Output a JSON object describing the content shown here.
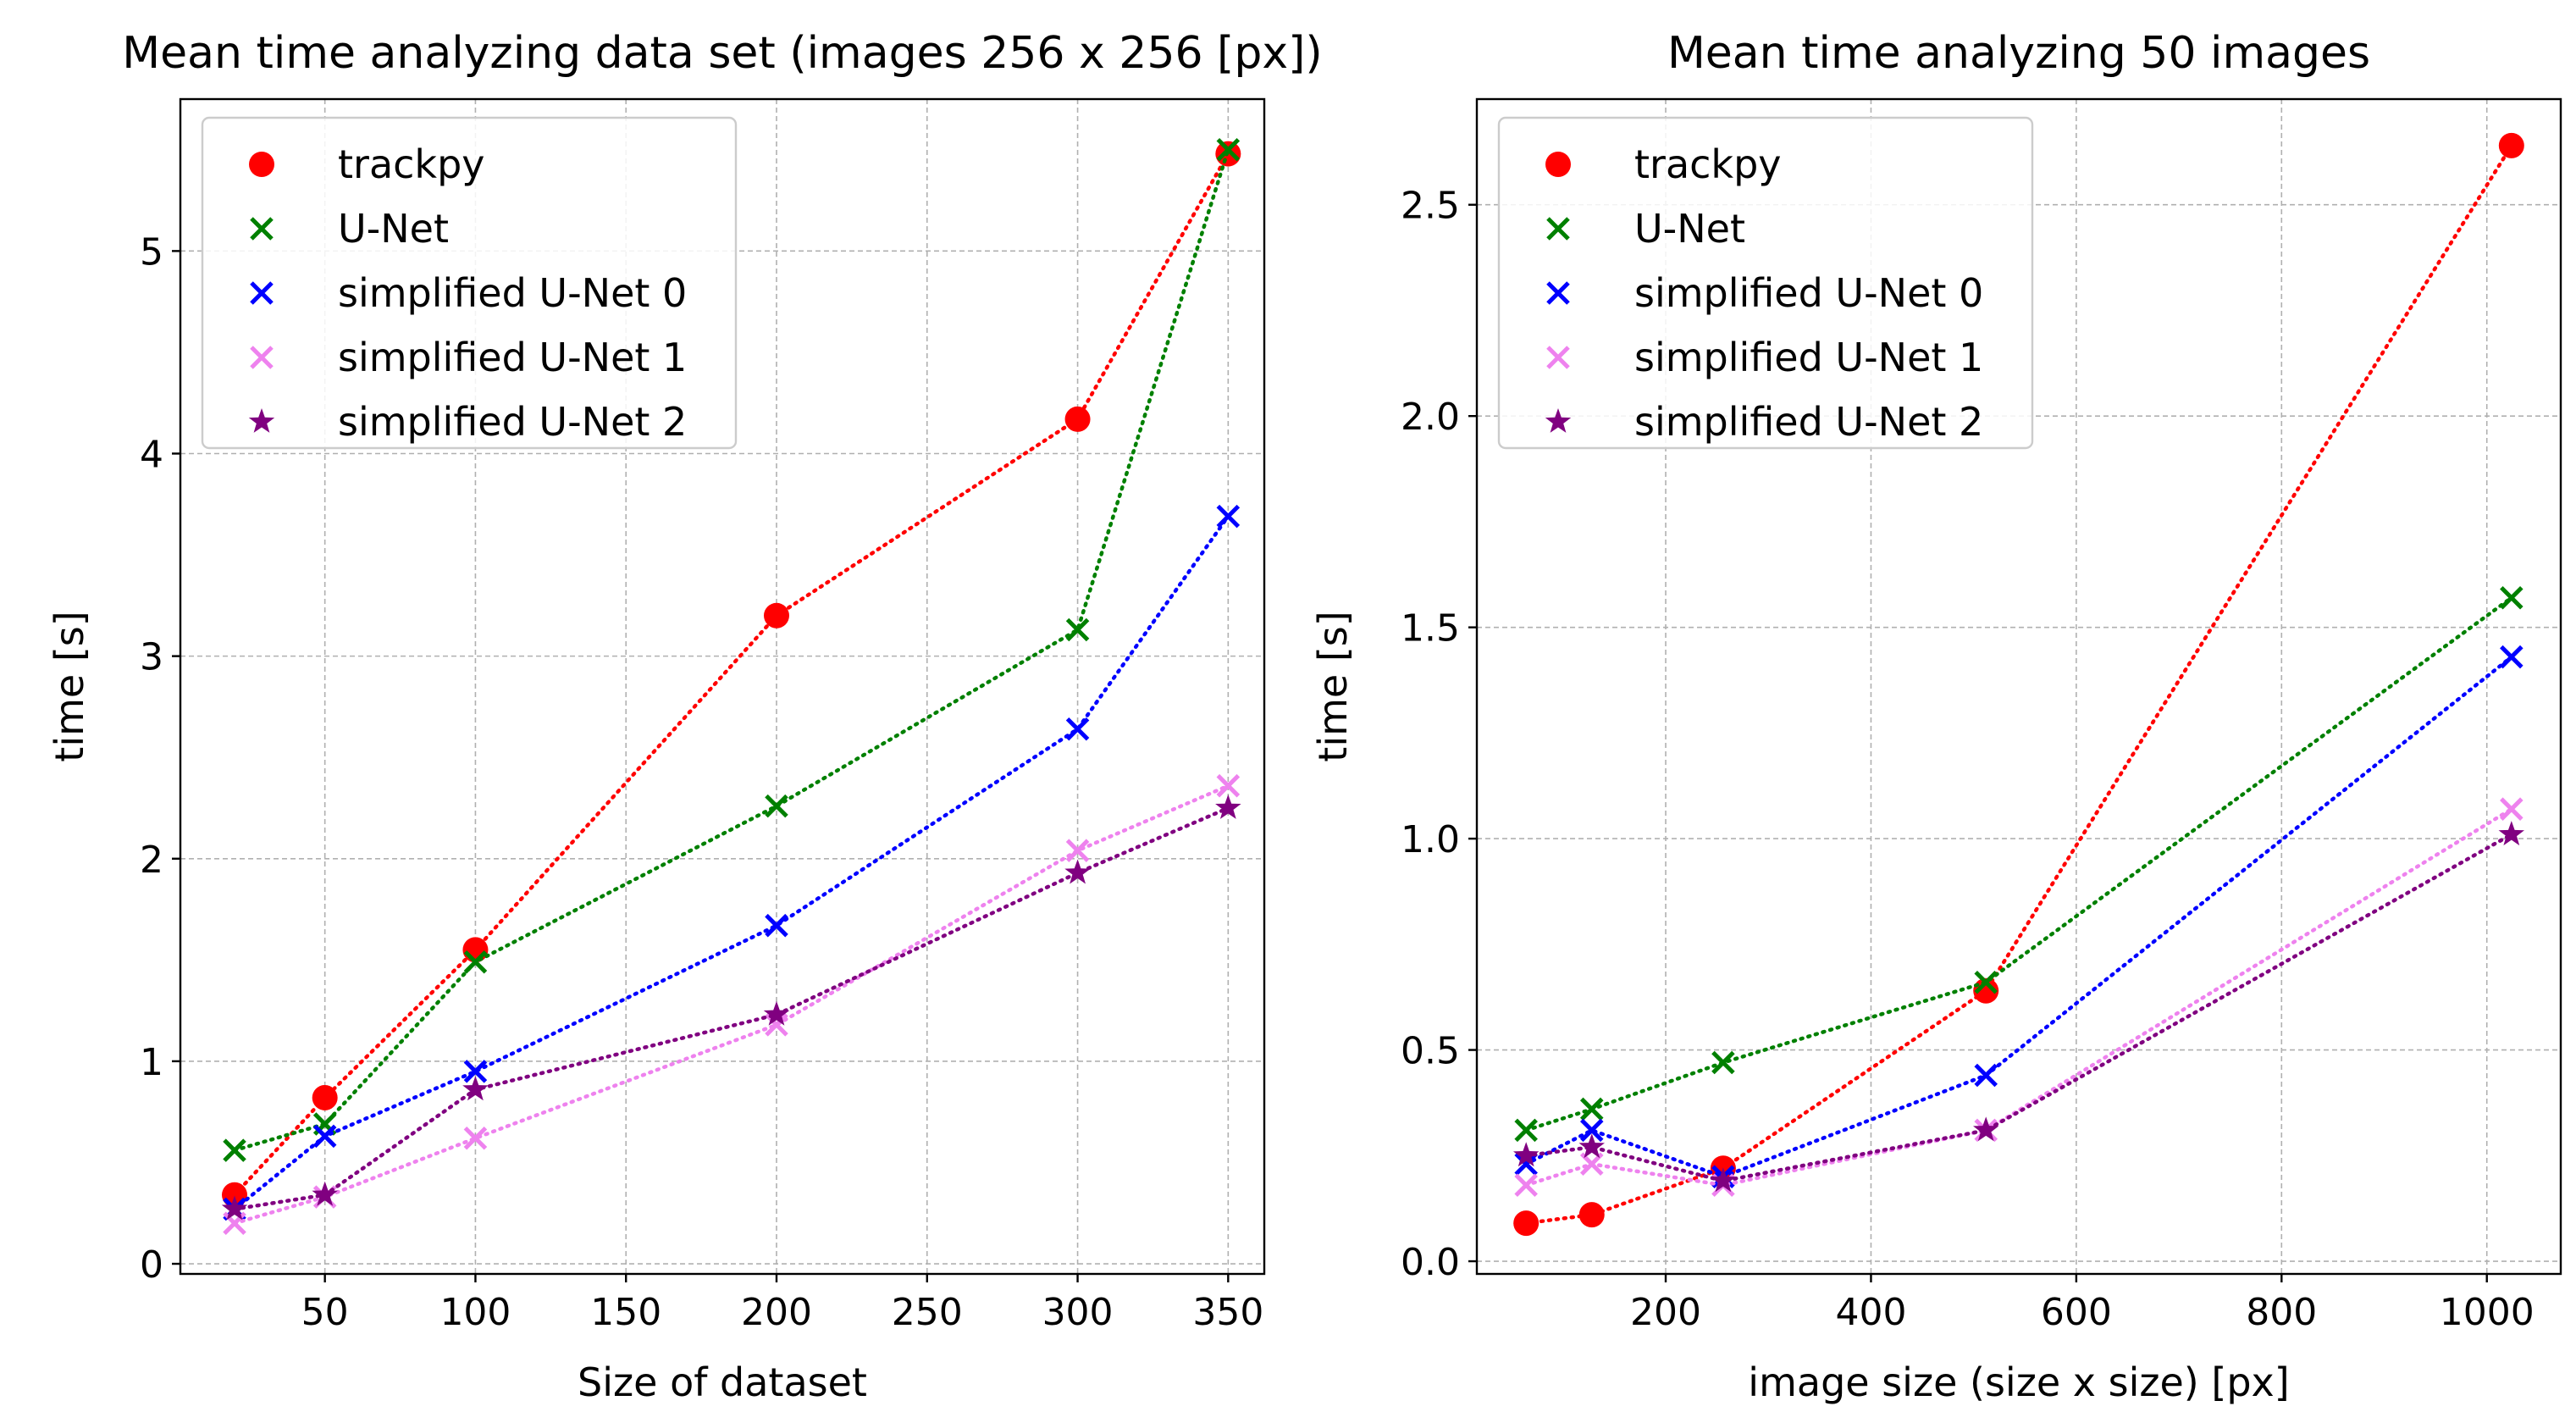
{
  "colors": {
    "trackpy": "#ff0000",
    "unet": "#008000",
    "su0": "#0000ff",
    "su1": "#ee82ee",
    "su2": "#800080",
    "grid": "#b0b0b0",
    "axes": "#000000",
    "background": "#ffffff"
  },
  "chart_data": [
    {
      "type": "line",
      "title": "Mean time analyzing data set (images 256 x 256 [px])",
      "xlabel": "Size of dataset",
      "ylabel": "time [s]",
      "xlim": [
        2,
        362
      ],
      "ylim": [
        -0.05,
        5.75
      ],
      "xticks": [
        50,
        100,
        150,
        200,
        250,
        300,
        350
      ],
      "xtick_labels": [
        "50",
        "100",
        "150",
        "200",
        "250",
        "300",
        "350"
      ],
      "yticks": [
        0,
        1,
        2,
        3,
        4,
        5
      ],
      "ytick_labels": [
        "0",
        "1",
        "2",
        "3",
        "4",
        "5"
      ],
      "grid": true,
      "legend_position": "top-left",
      "x": [
        20,
        50,
        100,
        200,
        300,
        350
      ],
      "series": [
        {
          "name": "trackpy",
          "marker": "circle",
          "color_key": "trackpy",
          "values": [
            0.34,
            0.82,
            1.55,
            3.2,
            4.17,
            5.48
          ]
        },
        {
          "name": "U-Net",
          "marker": "x",
          "color_key": "unet",
          "values": [
            0.56,
            0.69,
            1.49,
            2.26,
            3.13,
            5.5
          ]
        },
        {
          "name": "simplified U-Net 0",
          "marker": "x",
          "color_key": "su0",
          "values": [
            0.27,
            0.63,
            0.95,
            1.67,
            2.64,
            3.69
          ]
        },
        {
          "name": "simplified U-Net 1",
          "marker": "x",
          "color_key": "su1",
          "values": [
            0.2,
            0.33,
            0.62,
            1.18,
            2.04,
            2.36
          ]
        },
        {
          "name": "simplified U-Net 2",
          "marker": "star",
          "color_key": "su2",
          "values": [
            0.27,
            0.34,
            0.86,
            1.23,
            1.93,
            2.25
          ]
        }
      ]
    },
    {
      "type": "line",
      "title": "Mean time analyzing 50 images",
      "xlabel": "image size (size x size) [px]",
      "ylabel": "time [s]",
      "xlim": [
        16,
        1072
      ],
      "ylim": [
        -0.03,
        2.75
      ],
      "xticks": [
        200,
        400,
        600,
        800,
        1000
      ],
      "xtick_labels": [
        "200",
        "400",
        "600",
        "800",
        "1000"
      ],
      "yticks": [
        0.0,
        0.5,
        1.0,
        1.5,
        2.0,
        2.5
      ],
      "ytick_labels": [
        "0.0",
        "0.5",
        "1.0",
        "1.5",
        "2.0",
        "2.5"
      ],
      "grid": true,
      "legend_position": "top-left",
      "x": [
        64,
        128,
        256,
        512,
        1024
      ],
      "series": [
        {
          "name": "trackpy",
          "marker": "circle",
          "color_key": "trackpy",
          "values": [
            0.09,
            0.11,
            0.22,
            0.64,
            2.64
          ]
        },
        {
          "name": "U-Net",
          "marker": "x",
          "color_key": "unet",
          "values": [
            0.31,
            0.36,
            0.47,
            0.66,
            1.57
          ]
        },
        {
          "name": "simplified U-Net 0",
          "marker": "x",
          "color_key": "su0",
          "values": [
            0.23,
            0.31,
            0.2,
            0.44,
            1.43
          ]
        },
        {
          "name": "simplified U-Net 1",
          "marker": "x",
          "color_key": "su1",
          "values": [
            0.18,
            0.23,
            0.18,
            0.31,
            1.07
          ]
        },
        {
          "name": "simplified U-Net 2",
          "marker": "star",
          "color_key": "su2",
          "values": [
            0.25,
            0.27,
            0.19,
            0.31,
            1.01
          ]
        }
      ]
    }
  ]
}
